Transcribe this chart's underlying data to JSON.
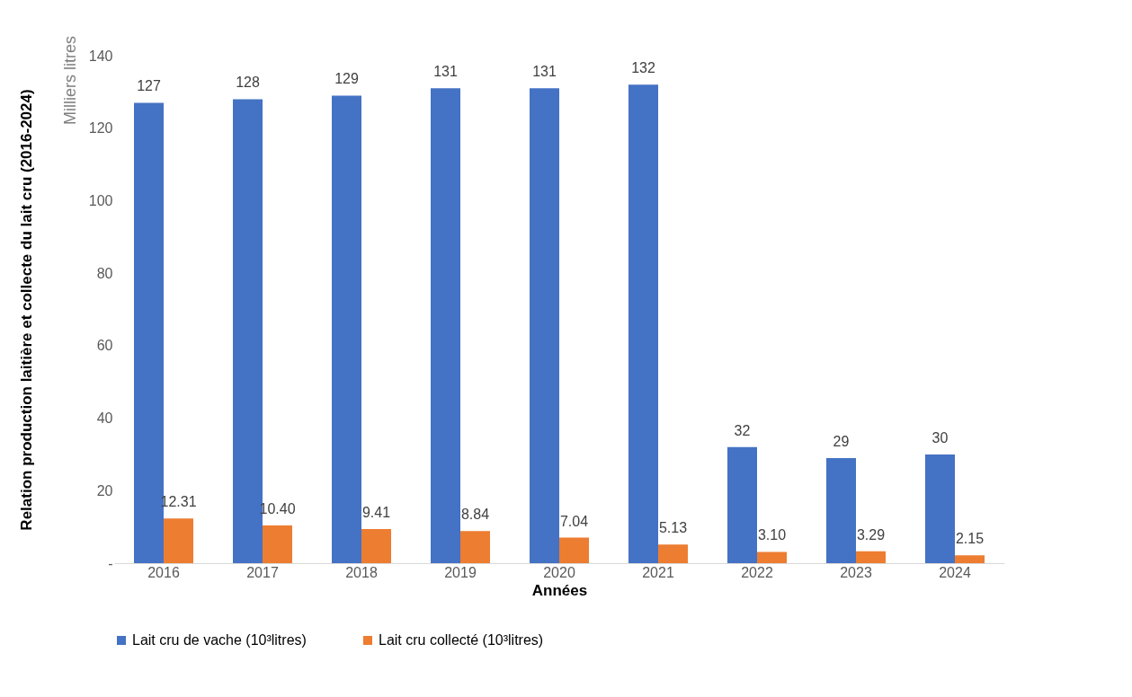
{
  "chart_data": {
    "type": "bar",
    "ylabel": "Relation production laitière et collecte du lait cru (2016-2024)",
    "xlabel": "Années",
    "annotations": [
      "Milliers litres"
    ],
    "categories": [
      "2016",
      "2017",
      "2018",
      "2019",
      "2020",
      "2021",
      "2022",
      "2023",
      "2024"
    ],
    "series": [
      {
        "name": "Lait cru de vache (10³litres)",
        "color": "#4472c4",
        "values": [
          127,
          128,
          129,
          131,
          131,
          132,
          32,
          29,
          30
        ],
        "value_labels": [
          "127",
          "128",
          "129",
          "131",
          "131",
          "132",
          "32",
          "29",
          "30"
        ]
      },
      {
        "name": "Lait cru collecté (10³litres)",
        "color": "#ed7d31",
        "values": [
          12.31,
          10.4,
          9.41,
          8.84,
          7.04,
          5.13,
          3.1,
          3.29,
          2.15
        ],
        "value_labels": [
          "12.31",
          "10.40",
          "9.41",
          "8.84",
          "7.04",
          "5.13",
          "3.10",
          "3.29",
          "2.15"
        ]
      }
    ],
    "ylim": [
      0,
      140
    ],
    "yticks": [
      {
        "value": 0,
        "label": "-"
      },
      20,
      40,
      60,
      80,
      100,
      120,
      140
    ],
    "grid": false,
    "legend": "bottom"
  }
}
